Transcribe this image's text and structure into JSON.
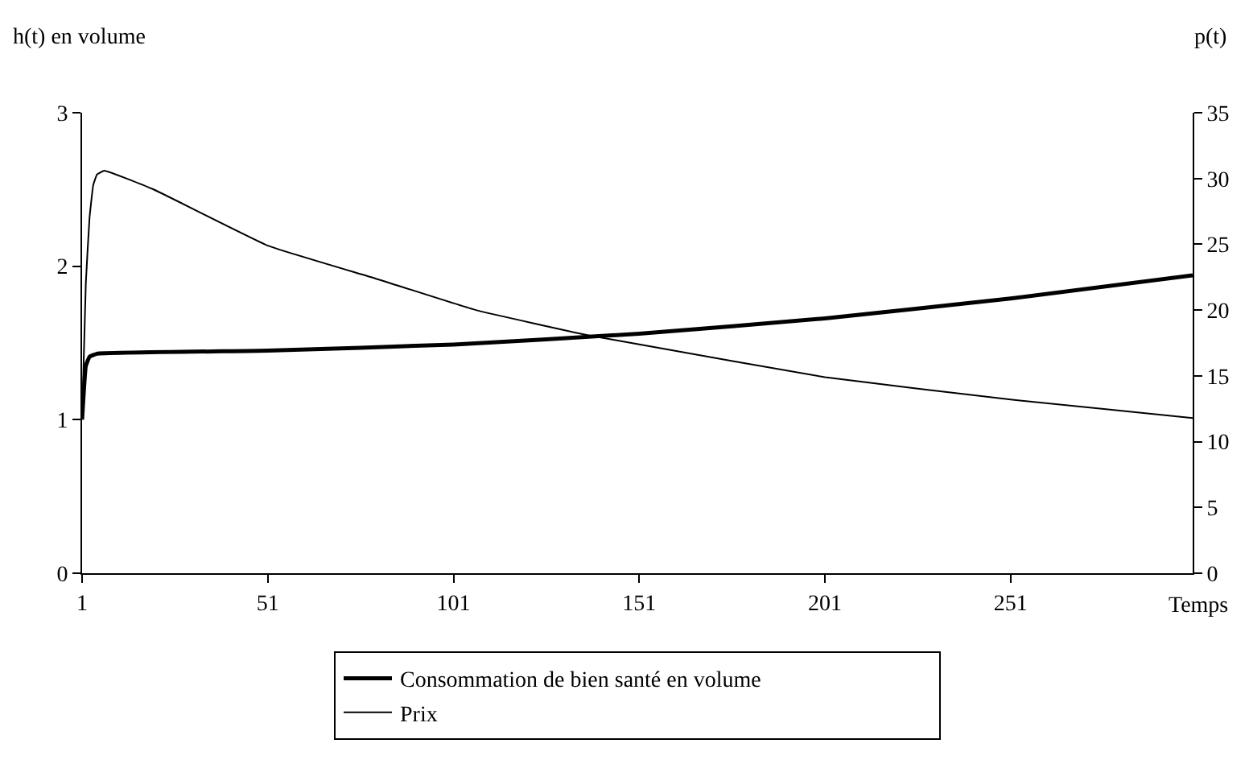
{
  "chart_data": {
    "type": "line",
    "xlabel": "Temps",
    "ylabel": "h(t) en volume",
    "y2label": "p(t)",
    "xlim": [
      1,
      300
    ],
    "xticks": [
      1,
      51,
      101,
      151,
      201,
      251
    ],
    "ylim": [
      0,
      3
    ],
    "yticks": [
      0,
      1,
      2,
      3
    ],
    "y2lim": [
      0,
      35
    ],
    "y2ticks": [
      0,
      5,
      10,
      15,
      20,
      25,
      30,
      35
    ],
    "legend": "bottom",
    "marker": "none",
    "line_style": "solid",
    "series": [
      {
        "name": "Consommation de bien santé en volume",
        "color": "#000000",
        "x": [
          1,
          2,
          3,
          5,
          51,
          101,
          151,
          201,
          251,
          300
        ],
        "values": [
          1.0,
          1.35,
          1.41,
          1.43,
          1.45,
          1.49,
          1.56,
          1.66,
          1.79,
          1.94
        ]
      },
      {
        "name": "Prix",
        "color": "#000000",
        "axis": "y2",
        "x": [
          1,
          2,
          3,
          4,
          5,
          7,
          20,
          51,
          80,
          107,
          137,
          151,
          201,
          251,
          300
        ],
        "values": [
          11.7,
          22,
          27,
          29.5,
          30.3,
          30.6,
          29.2,
          24.9,
          22.4,
          20.0,
          18.1,
          17.4,
          14.9,
          13.2,
          11.8
        ]
      }
    ]
  }
}
